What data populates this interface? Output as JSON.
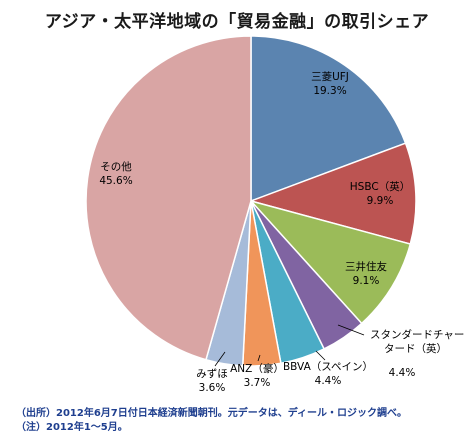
{
  "chart_data": {
    "type": "pie",
    "title": "アジア・太平洋地域の「貿易金融」の取引シェア",
    "slices": [
      {
        "name": "三菱UFJ",
        "value": 19.3,
        "label": "19.3%",
        "color": "#5b84b0"
      },
      {
        "name": "HSBC（英）",
        "value": 9.9,
        "label": "9.9%",
        "color": "#bc5452"
      },
      {
        "name": "三井住友",
        "value": 9.1,
        "label": "9.1%",
        "color": "#9bbb59"
      },
      {
        "name": "スタンダードチャータード（英）",
        "name_lines": [
          "スタンダードチャー",
          "タード（英）"
        ],
        "value": 4.4,
        "label": "4.4%",
        "color": "#8064a2"
      },
      {
        "name": "BBVA（スペイン）",
        "value": 4.4,
        "label": "4.4%",
        "color": "#4bacc6"
      },
      {
        "name": "ANZ（豪）",
        "value": 3.7,
        "label": "3.7%",
        "color": "#f0955a"
      },
      {
        "name": "みずほ",
        "value": 3.6,
        "label": "3.6%",
        "color": "#a6bbd9"
      },
      {
        "name": "その他",
        "value": 45.6,
        "label": "45.6%",
        "color": "#d9a5a4"
      }
    ],
    "start_direction": "12 o'clock",
    "direction": "clockwise"
  },
  "footnotes": {
    "source": "（出所）2012年6月7日付日本経済新聞朝刊。元データは、ディール・ロジック調べ。",
    "note": "（注）2012年1～5月。"
  }
}
